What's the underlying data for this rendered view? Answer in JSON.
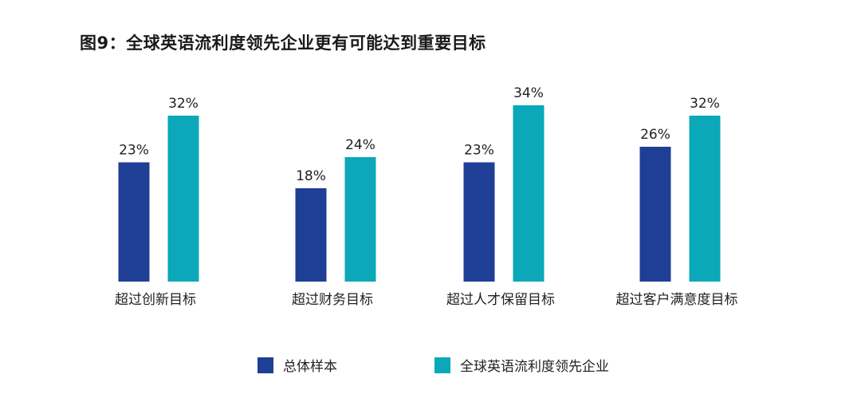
{
  "chart_data": {
    "type": "bar",
    "title": "图9：全球英语流利度领先企业更有可能达到重要目标",
    "categories": [
      "超过创新目标",
      "超过财务目标",
      "超过人才保留目标",
      "超过客户满意度目标"
    ],
    "series": [
      {
        "name": "总体样本",
        "values": [
          23,
          18,
          23,
          26
        ],
        "labels": [
          "23%",
          "18%",
          "23%",
          "26%"
        ],
        "color": "#1f3e96"
      },
      {
        "name": "全球英语流利度领先企业",
        "values": [
          32,
          24,
          34,
          32
        ],
        "labels": [
          "32%",
          "24%",
          "34%",
          "32%"
        ],
        "color": "#0aa8b8"
      }
    ],
    "ylim": [
      0,
      34
    ],
    "grid": false,
    "legend_position": "bottom"
  }
}
